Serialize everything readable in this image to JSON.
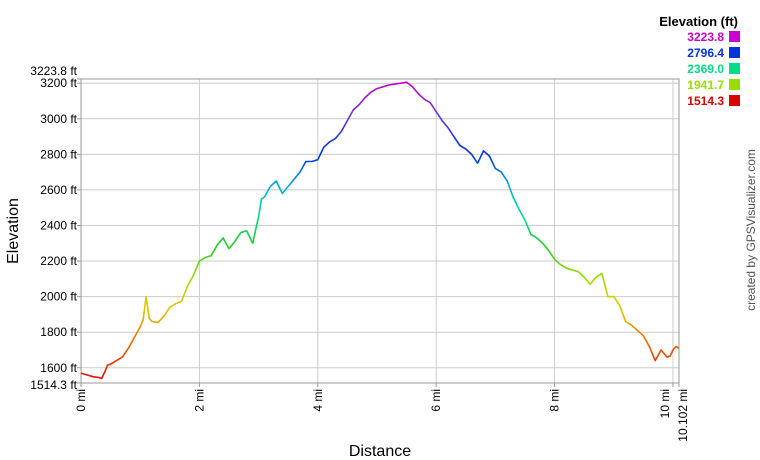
{
  "chart_data": {
    "type": "line",
    "xlabel": "Distance",
    "ylabel": "Elevation",
    "xlim": [
      0,
      10.102
    ],
    "ylim": [
      1514.3,
      3223.8
    ],
    "grid": true,
    "x_ticks": [
      {
        "value": 0,
        "label": "0 mi"
      },
      {
        "value": 2,
        "label": "2 mi"
      },
      {
        "value": 4,
        "label": "4 mi"
      },
      {
        "value": 6,
        "label": "6 mi"
      },
      {
        "value": 8,
        "label": "8 mi"
      },
      {
        "value": 10,
        "label": "10 mi"
      },
      {
        "value": 10.102,
        "label": "10.102 mi"
      }
    ],
    "y_ticks": [
      {
        "value": 1514.3,
        "label": "1514.3 ft"
      },
      {
        "value": 1600,
        "label": "1600 ft"
      },
      {
        "value": 1800,
        "label": "1800 ft"
      },
      {
        "value": 2000,
        "label": "2000 ft"
      },
      {
        "value": 2200,
        "label": "2200 ft"
      },
      {
        "value": 2400,
        "label": "2400 ft"
      },
      {
        "value": 2600,
        "label": "2600 ft"
      },
      {
        "value": 2800,
        "label": "2800 ft"
      },
      {
        "value": 3000,
        "label": "3000 ft"
      },
      {
        "value": 3200,
        "label": "3200 ft"
      },
      {
        "value": 3223.8,
        "label": "3223.8 ft"
      }
    ],
    "legend": {
      "title": "Elevation (ft)",
      "placement": "top-right",
      "entries": [
        {
          "label": "3223.8",
          "color": "#cc00cc"
        },
        {
          "label": "2796.4",
          "color": "#0033dd"
        },
        {
          "label": "2369.0",
          "color": "#00dd88"
        },
        {
          "label": "1941.7",
          "color": "#99dd00"
        },
        {
          "label": "1514.3",
          "color": "#dd0000"
        }
      ]
    },
    "series": [
      {
        "x": [
          0,
          0.1,
          0.2,
          0.3,
          0.35,
          0.4,
          0.45,
          0.5,
          0.6,
          0.7,
          0.8,
          0.9,
          1.0,
          1.05,
          1.1,
          1.15,
          1.2,
          1.3,
          1.4,
          1.5,
          1.6,
          1.7,
          1.8,
          1.9,
          2.0,
          2.1,
          2.2,
          2.3,
          2.4,
          2.5,
          2.6,
          2.7,
          2.8,
          2.9,
          3.0,
          3.05,
          3.1,
          3.2,
          3.3,
          3.4,
          3.5,
          3.6,
          3.7,
          3.8,
          3.9,
          4.0,
          4.1,
          4.2,
          4.3,
          4.4,
          4.5,
          4.6,
          4.7,
          4.8,
          4.9,
          5.0,
          5.1,
          5.2,
          5.3,
          5.4,
          5.5,
          5.6,
          5.7,
          5.8,
          5.9,
          6.0,
          6.1,
          6.2,
          6.3,
          6.4,
          6.5,
          6.6,
          6.7,
          6.8,
          6.9,
          7.0,
          7.1,
          7.2,
          7.3,
          7.4,
          7.5,
          7.6,
          7.7,
          7.8,
          7.9,
          8.0,
          8.1,
          8.2,
          8.3,
          8.4,
          8.5,
          8.6,
          8.7,
          8.8,
          8.9,
          9.0,
          9.1,
          9.2,
          9.3,
          9.4,
          9.5,
          9.6,
          9.7,
          9.8,
          9.9,
          9.95,
          10.0,
          10.05,
          10.102
        ],
        "y": [
          1570,
          1560,
          1550,
          1545,
          1540,
          1575,
          1615,
          1620,
          1640,
          1660,
          1710,
          1770,
          1830,
          1870,
          2000,
          1880,
          1860,
          1855,
          1890,
          1940,
          1960,
          1975,
          2060,
          2120,
          2200,
          2220,
          2230,
          2290,
          2330,
          2270,
          2310,
          2360,
          2370,
          2300,
          2450,
          2550,
          2560,
          2620,
          2650,
          2580,
          2620,
          2660,
          2700,
          2760,
          2760,
          2770,
          2840,
          2870,
          2890,
          2930,
          2990,
          3050,
          3080,
          3120,
          3150,
          3170,
          3180,
          3190,
          3195,
          3200,
          3205,
          3180,
          3140,
          3110,
          3090,
          3040,
          2990,
          2950,
          2900,
          2850,
          2830,
          2800,
          2750,
          2820,
          2790,
          2720,
          2700,
          2650,
          2560,
          2490,
          2430,
          2350,
          2330,
          2300,
          2260,
          2210,
          2180,
          2160,
          2150,
          2140,
          2110,
          2070,
          2110,
          2130,
          2000,
          2000,
          1950,
          1860,
          1840,
          1810,
          1780,
          1720,
          1640,
          1700,
          1660,
          1665,
          1700,
          1720,
          1710
        ]
      }
    ],
    "credit": "created by GPSVisualizer.com"
  }
}
